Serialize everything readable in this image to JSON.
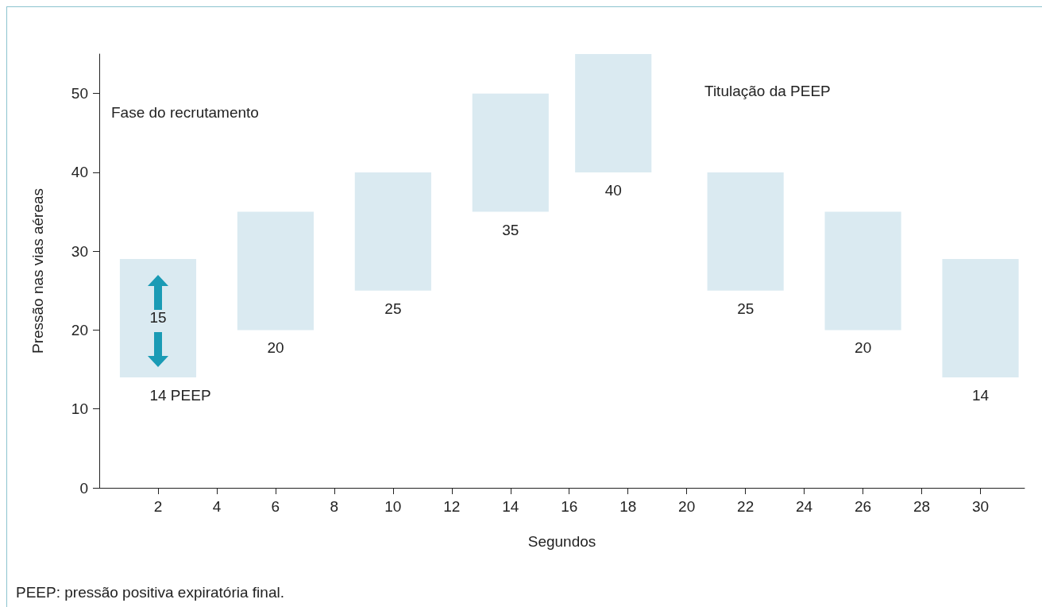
{
  "chart_data": {
    "type": "bar",
    "xlabel": "Segundos",
    "ylabel": "Pressão nas vias aéreas",
    "x": [
      2,
      6,
      10,
      14,
      17.5,
      22,
      26,
      30
    ],
    "base": [
      14,
      20,
      25,
      35,
      40,
      25,
      20,
      14
    ],
    "values": [
      15,
      15,
      15,
      15,
      15,
      15,
      15,
      15
    ],
    "color": "#daeaf1",
    "xlim": [
      0,
      31.5
    ],
    "xticks": [
      2,
      4,
      6,
      8,
      10,
      12,
      14,
      16,
      18,
      20,
      22,
      24,
      26,
      28,
      30
    ],
    "ylim": [
      0,
      55
    ],
    "yticks": [
      0,
      10,
      20,
      30,
      40,
      50
    ],
    "grid": false,
    "annotations": [
      "Fase do recrutamento",
      "Titulação da PEEP",
      "PEEP: pressão positiva expiratória final.",
      "15",
      {
        "text": "14  PEEP",
        "x": 2,
        "y": 14
      },
      {
        "text": "20",
        "x": 6,
        "y": 20
      },
      {
        "text": "25",
        "x": 10,
        "y": 25
      },
      {
        "text": "35",
        "x": 14,
        "y": 35
      },
      {
        "text": "40",
        "x": 17.5,
        "y": 40
      },
      {
        "text": "25",
        "x": 22,
        "y": 25
      },
      {
        "text": "20",
        "x": 26,
        "y": 20
      },
      {
        "text": "14",
        "x": 30,
        "y": 14
      }
    ]
  }
}
